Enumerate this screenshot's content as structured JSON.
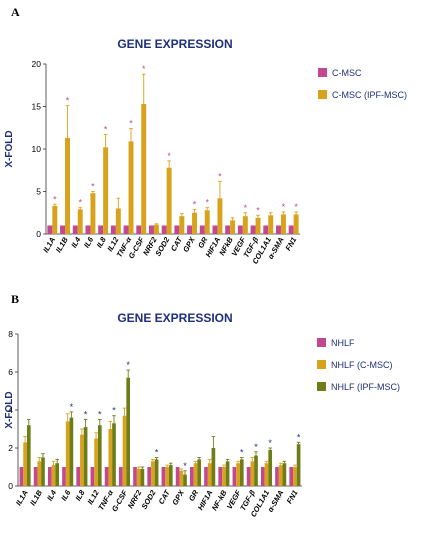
{
  "figure": {
    "panels": [
      {
        "letter": "A",
        "title": "GENE EXPRESSION",
        "ylabel": "X-FOLD"
      },
      {
        "letter": "B",
        "title": "GENE EXPRESSION",
        "ylabel": "X-FOLD"
      }
    ]
  },
  "chart_data": [
    {
      "type": "bar",
      "title": "GENE EXPRESSION",
      "xlabel": "",
      "ylabel": "X-FOLD",
      "ylim": [
        0,
        20
      ],
      "yticks": [
        0,
        5,
        10,
        15,
        20
      ],
      "legend_position": "right",
      "categories": [
        "IL1A",
        "IL1B",
        "IL4",
        "IL6",
        "IL8",
        "IL12",
        "TNF-α",
        "G-CSF",
        "NRF2",
        "SOD2",
        "CAT",
        "GPX",
        "GR",
        "HIF1A",
        "NFkB",
        "VEGF",
        "TGF-β",
        "COL1A1",
        "α-SMA",
        "FN1"
      ],
      "series": [
        {
          "name": "C-MSC",
          "color": "#c2488f",
          "values": [
            1,
            1,
            1,
            1,
            1,
            1,
            1,
            1,
            1,
            1,
            1,
            1,
            1,
            1,
            1,
            1,
            1,
            1,
            1,
            1
          ]
        },
        {
          "name": "C-MSC (IPF-MSC)",
          "color": "#d9a21c",
          "values": [
            3.3,
            11.3,
            2.9,
            4.8,
            10.2,
            3.0,
            10.9,
            15.3,
            1.1,
            7.8,
            2.1,
            2.5,
            2.8,
            4.2,
            1.6,
            2.1,
            1.9,
            2.2,
            2.3,
            2.3
          ],
          "errors": [
            0.2,
            3.8,
            0.2,
            0.2,
            1.5,
            1.2,
            1.5,
            3.5,
            0.1,
            0.8,
            0.3,
            0.4,
            0.3,
            2.0,
            0.3,
            0.4,
            0.3,
            0.3,
            0.3,
            0.3
          ],
          "significant": [
            true,
            true,
            true,
            true,
            true,
            false,
            true,
            true,
            false,
            true,
            false,
            true,
            true,
            true,
            false,
            true,
            true,
            false,
            true,
            true
          ]
        }
      ]
    },
    {
      "type": "bar",
      "title": "GENE EXPRESSION",
      "xlabel": "",
      "ylabel": "X-FOLD",
      "ylim": [
        0,
        8
      ],
      "yticks": [
        0,
        2,
        4,
        6,
        8
      ],
      "legend_position": "right",
      "categories": [
        "IL1A",
        "IL1B",
        "IL4",
        "IL6",
        "IL8",
        "IL12",
        "TNF-α",
        "G-CSF",
        "NRF2",
        "SOD2",
        "CAT",
        "GPX",
        "GR",
        "HIF1A",
        "NF-kB",
        "VEGF",
        "TGF-β",
        "COL1A1",
        "α-SMA",
        "FN1"
      ],
      "series": [
        {
          "name": "NHLF",
          "color": "#c2488f",
          "values": [
            1,
            1,
            1,
            1,
            1,
            1,
            1,
            1,
            1,
            1,
            1,
            1,
            1,
            1,
            1,
            1,
            1,
            1,
            1,
            1
          ]
        },
        {
          "name": "NHLF (C-MSC)",
          "color": "#d9a21c",
          "values": [
            2.3,
            1.3,
            1.1,
            3.4,
            2.7,
            2.5,
            3.0,
            3.7,
            0.9,
            1.3,
            1.0,
            0.8,
            1.2,
            1.2,
            1.0,
            1.2,
            1.3,
            1.2,
            1.1,
            1.0
          ],
          "errors": [
            0.3,
            0.2,
            0.2,
            0.4,
            0.3,
            0.3,
            0.4,
            0.4,
            0.1,
            0.1,
            0.1,
            0.1,
            0.1,
            0.2,
            0.1,
            0.1,
            0.2,
            0.1,
            0.1,
            0.1
          ]
        },
        {
          "name": "NHLF (IPF-MSC)",
          "color": "#6f7d19",
          "values": [
            3.2,
            1.5,
            1.2,
            3.6,
            3.1,
            3.2,
            3.3,
            5.7,
            0.9,
            1.4,
            1.1,
            0.6,
            1.4,
            2.0,
            1.3,
            1.4,
            1.6,
            1.9,
            1.2,
            2.2
          ],
          "errors": [
            0.3,
            0.2,
            0.2,
            0.3,
            0.4,
            0.3,
            0.4,
            0.4,
            0.1,
            0.1,
            0.1,
            0.2,
            0.1,
            0.6,
            0.1,
            0.1,
            0.2,
            0.1,
            0.1,
            0.1
          ],
          "significant": [
            false,
            false,
            false,
            true,
            true,
            true,
            true,
            true,
            false,
            true,
            false,
            true,
            false,
            false,
            false,
            true,
            true,
            true,
            false,
            true
          ]
        }
      ]
    }
  ]
}
